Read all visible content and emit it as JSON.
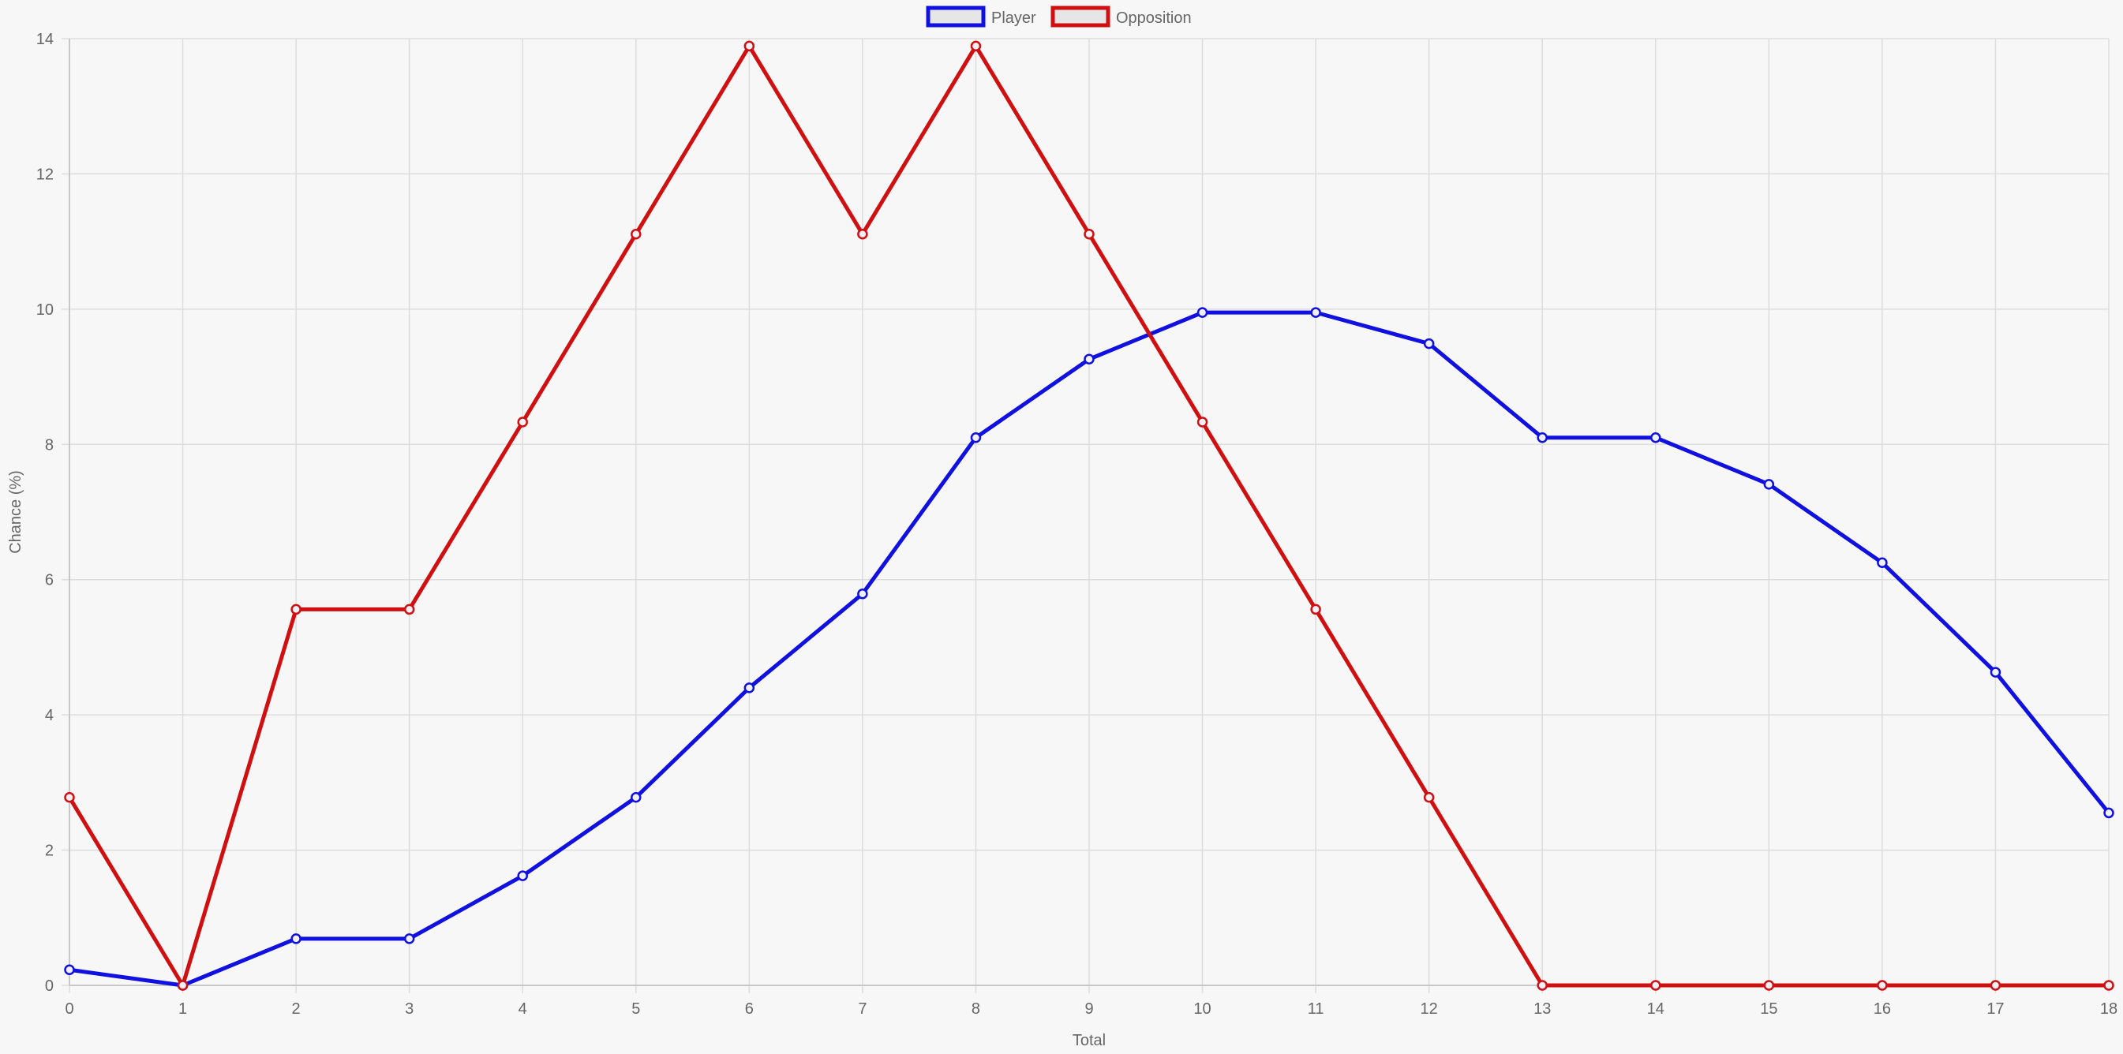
{
  "chart_data": {
    "type": "line",
    "xlabel": "Total",
    "ylabel": "Chance (%)",
    "x": [
      0,
      1,
      2,
      3,
      4,
      5,
      6,
      7,
      8,
      9,
      10,
      11,
      12,
      13,
      14,
      15,
      16,
      17,
      18
    ],
    "xlim": [
      0,
      18
    ],
    "ylim": [
      0,
      14
    ],
    "yticks": [
      0,
      2,
      4,
      6,
      8,
      10,
      12,
      14
    ],
    "grid": true,
    "legend_position": "top-center",
    "series": [
      {
        "name": "Player",
        "color": "#1010e0",
        "values": [
          0.23,
          0,
          0.69,
          0.69,
          1.62,
          2.78,
          4.4,
          5.79,
          8.1,
          9.26,
          9.95,
          9.95,
          9.49,
          8.1,
          8.1,
          7.41,
          6.25,
          4.63,
          2.55
        ]
      },
      {
        "name": "Opposition",
        "color": "#d01010",
        "values": [
          2.78,
          0,
          5.56,
          5.56,
          8.33,
          11.11,
          13.89,
          11.11,
          13.89,
          11.11,
          8.33,
          5.56,
          2.78,
          0,
          0,
          0,
          0,
          0,
          0
        ]
      }
    ]
  }
}
